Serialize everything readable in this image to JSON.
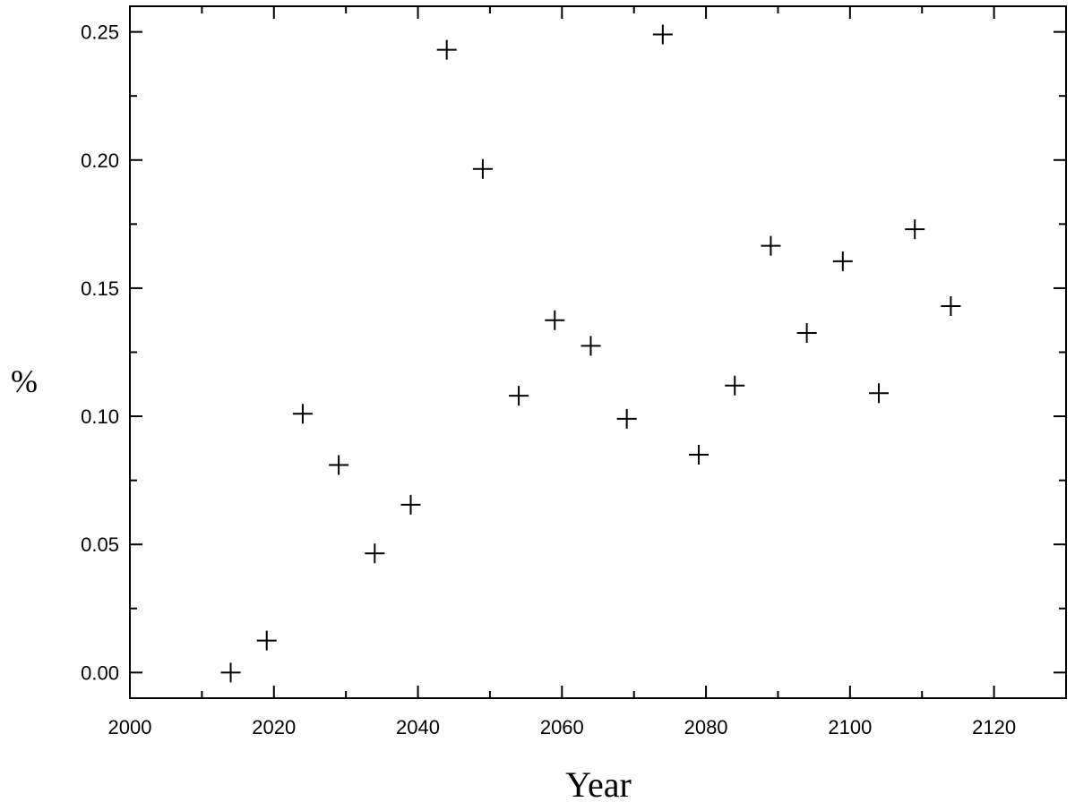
{
  "chart_data": {
    "type": "scatter",
    "title": "",
    "xlabel": "Year",
    "ylabel": "%",
    "xlim": [
      2000,
      2130
    ],
    "ylim": [
      -0.01,
      0.26
    ],
    "xticks": [
      2000,
      2020,
      2040,
      2060,
      2080,
      2100,
      2120
    ],
    "xtick_labels": [
      "2000",
      "2020",
      "2040",
      "2060",
      "2080",
      "2100",
      "2120"
    ],
    "yticks": [
      0.0,
      0.05,
      0.1,
      0.15,
      0.2,
      0.25
    ],
    "ytick_labels": [
      "0.00",
      "0.05",
      "0.10",
      "0.15",
      "0.20",
      "0.25"
    ],
    "grid": false,
    "marker": "plus",
    "series": [
      {
        "x": [
          2014,
          2019,
          2024,
          2029,
          2034,
          2039,
          2044,
          2049,
          2054,
          2059,
          2064,
          2069,
          2074,
          2079,
          2084,
          2089,
          2094,
          2099,
          2104,
          2109,
          2114
        ],
        "y": [
          0.0,
          0.0125,
          0.101,
          0.081,
          0.0465,
          0.0655,
          0.243,
          0.1965,
          0.108,
          0.1375,
          0.1275,
          0.099,
          0.249,
          0.085,
          0.112,
          0.1665,
          0.1325,
          0.1605,
          0.109,
          0.173,
          0.143
        ]
      }
    ]
  }
}
